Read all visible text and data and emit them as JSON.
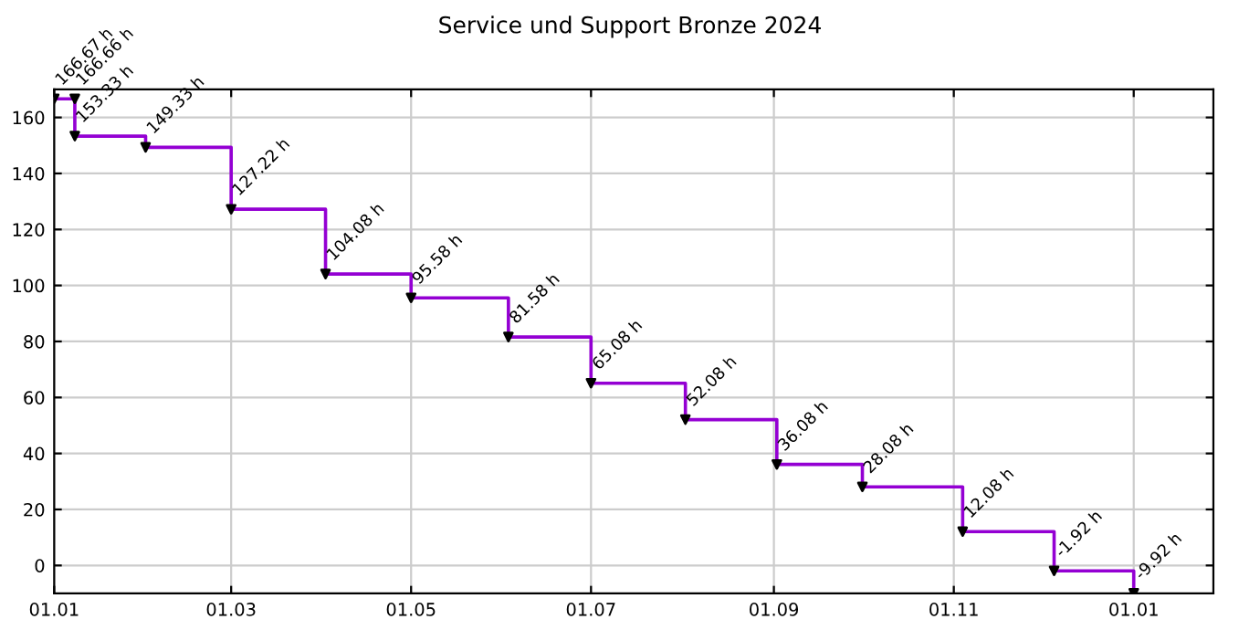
{
  "chart_data": {
    "type": "step",
    "title": "Service und Support Bronze 2024",
    "x": [
      "2024-01-01",
      "2024-01-08",
      "2024-01-08",
      "2024-02-01",
      "2024-03-01",
      "2024-04-02",
      "2024-05-01",
      "2024-06-03",
      "2024-07-01",
      "2024-08-02",
      "2024-09-02",
      "2024-10-01",
      "2024-11-04",
      "2024-12-05",
      "2025-01-01"
    ],
    "series": [
      {
        "color": "#9400d3",
        "values": [
          166.67,
          166.66,
          153.33,
          149.33,
          127.22,
          104.08,
          95.58,
          81.58,
          65.08,
          52.08,
          36.08,
          28.08,
          12.08,
          -1.92,
          -9.92
        ],
        "value_labels": [
          "166.67 h",
          "166.66 h",
          "153.33 h",
          "149.33 h",
          "127.22 h",
          "104.08 h",
          "95.58 h",
          "81.58 h",
          "65.08 h",
          "52.08 h",
          "36.08 h",
          "28.08 h",
          "12.08 h",
          "-1.92 h",
          "-9.92 h"
        ]
      }
    ],
    "xlim": [
      "2024-01-01",
      "2025-01-28"
    ],
    "xticks": [
      {
        "value": "2024-01-01",
        "label": "01.01"
      },
      {
        "value": "2024-03-01",
        "label": "01.03"
      },
      {
        "value": "2024-05-01",
        "label": "01.05"
      },
      {
        "value": "2024-07-01",
        "label": "01.07"
      },
      {
        "value": "2024-09-01",
        "label": "01.09"
      },
      {
        "value": "2024-11-01",
        "label": "01.11"
      },
      {
        "value": "2025-01-01",
        "label": "01.01"
      }
    ],
    "ylim": [
      -10,
      170
    ],
    "yticks": [
      0,
      20,
      40,
      60,
      80,
      100,
      120,
      140,
      160
    ],
    "grid": true,
    "marker": "triangle",
    "line_style": "solid",
    "legend": false
  }
}
